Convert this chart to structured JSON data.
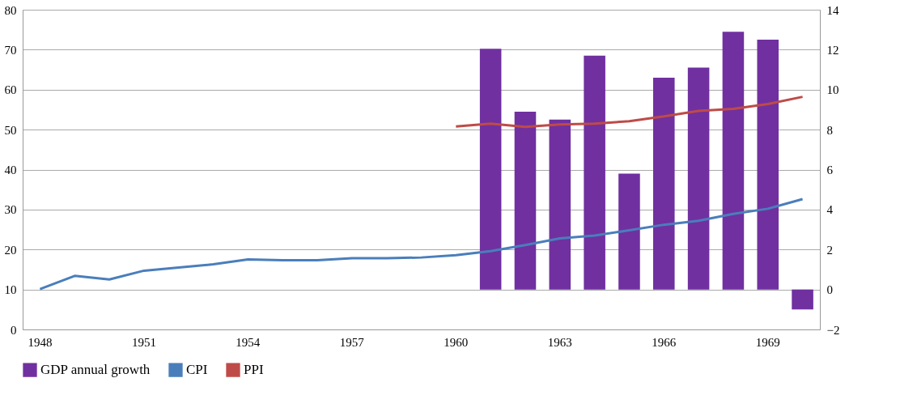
{
  "chart_data": {
    "type": "bar",
    "categories": [
      "1948",
      null,
      null,
      "1951",
      null,
      null,
      "1954",
      null,
      null,
      "1957",
      null,
      null,
      "1960",
      null,
      null,
      "1963",
      null,
      null,
      "1966",
      null,
      null,
      "1969",
      null
    ],
    "series": [
      {
        "name": "GDP annual growth",
        "axis": "y2",
        "color": "#7030a0",
        "values": [
          null,
          null,
          null,
          null,
          null,
          null,
          null,
          null,
          null,
          null,
          null,
          null,
          null,
          12.05,
          8.9,
          8.5,
          11.7,
          5.8,
          10.6,
          11.1,
          12.9,
          12.5,
          -1.0
        ]
      },
      {
        "name": "CPI",
        "type": "line",
        "color": "#4a7ebb",
        "values": [
          10.1,
          13.4,
          12.5,
          14.7,
          15.5,
          16.3,
          17.5,
          17.3,
          17.3,
          17.8,
          17.8,
          18.0,
          18.6,
          19.6,
          21.1,
          22.8,
          23.5,
          24.8,
          26.2,
          27.2,
          28.9,
          30.2,
          32.6
        ]
      },
      {
        "name": "PPI",
        "type": "line",
        "color": "#be4b48",
        "values": [
          null,
          null,
          null,
          null,
          null,
          null,
          null,
          null,
          null,
          null,
          null,
          null,
          50.8,
          51.5,
          50.7,
          51.3,
          51.5,
          52.1,
          53.3,
          54.7,
          55.2,
          56.4,
          58.2
        ]
      }
    ],
    "ylim": [
      0,
      80
    ],
    "yticks": [
      0,
      10,
      20,
      30,
      40,
      50,
      60,
      70,
      80
    ],
    "y2lim": [
      -2,
      14
    ],
    "y2ticks": [
      -2,
      0,
      2,
      4,
      6,
      8,
      10,
      12,
      14
    ],
    "grid": "y",
    "legend": "bottom",
    "line_style": "solid",
    "marker": "none"
  }
}
